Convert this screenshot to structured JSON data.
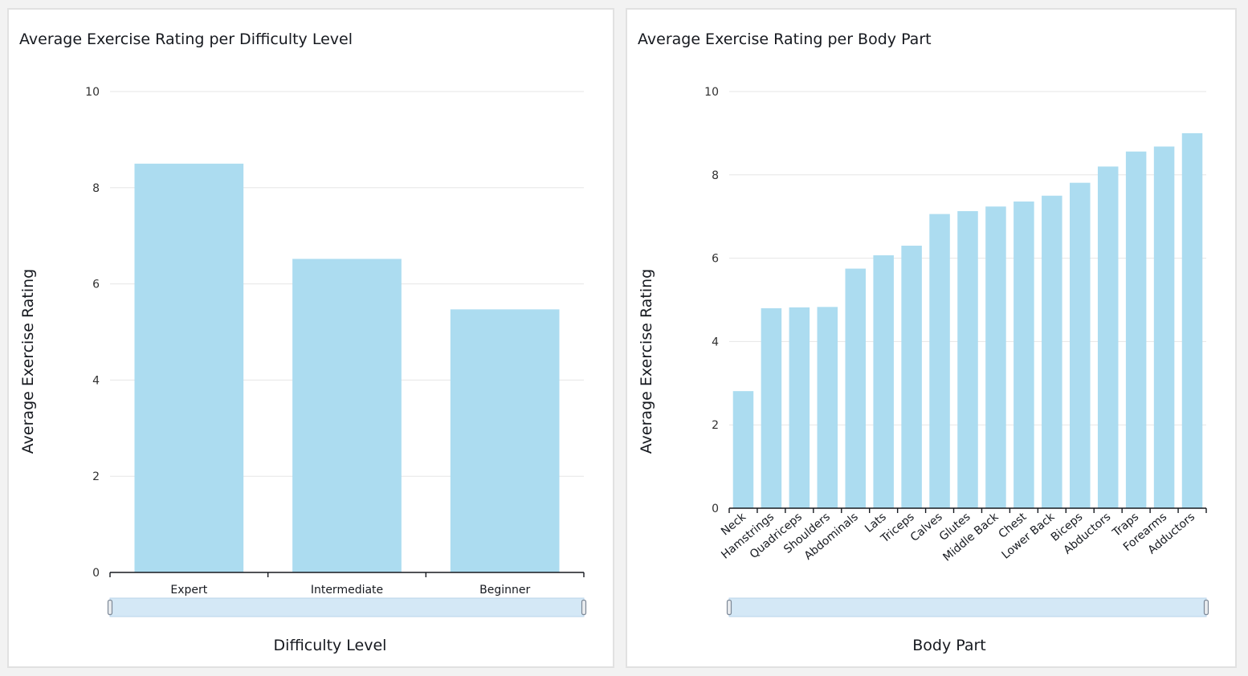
{
  "colors": {
    "bar": "#acdcf0",
    "scroll_track": "#d4e8f6",
    "scroll_border": "#b9d3ea",
    "handle_fill": "#e9ecef",
    "handle_border": "#7d8998"
  },
  "chart_data": [
    {
      "type": "bar",
      "title": "Average Exercise Rating per Difficulty Level",
      "xlabel": "Difficulty Level",
      "ylabel": "Average Exercise Rating",
      "categories": [
        "Expert",
        "Intermediate",
        "Beginner"
      ],
      "values": [
        8.5,
        6.52,
        5.47
      ],
      "ylim": [
        0,
        10
      ],
      "yticks": [
        0,
        2,
        4,
        6,
        8,
        10
      ],
      "grid": true,
      "legend": "none"
    },
    {
      "type": "bar",
      "title": "Average Exercise Rating per Body Part",
      "xlabel": "Body Part",
      "ylabel": "Average Exercise Rating",
      "categories": [
        "Neck",
        "Hamstrings",
        "Quadriceps",
        "Shoulders",
        "Abdominals",
        "Lats",
        "Triceps",
        "Calves",
        "Glutes",
        "Middle Back",
        "Chest",
        "Lower Back",
        "Biceps",
        "Abductors",
        "Traps",
        "Forearms",
        "Adductors"
      ],
      "values": [
        2.81,
        4.8,
        4.82,
        4.83,
        5.75,
        6.07,
        6.3,
        7.06,
        7.13,
        7.24,
        7.36,
        7.5,
        7.81,
        8.2,
        8.56,
        8.68,
        9.0
      ],
      "ylim": [
        0,
        10
      ],
      "yticks": [
        0,
        2,
        4,
        6,
        8,
        10
      ],
      "grid": true,
      "legend": "none"
    }
  ]
}
